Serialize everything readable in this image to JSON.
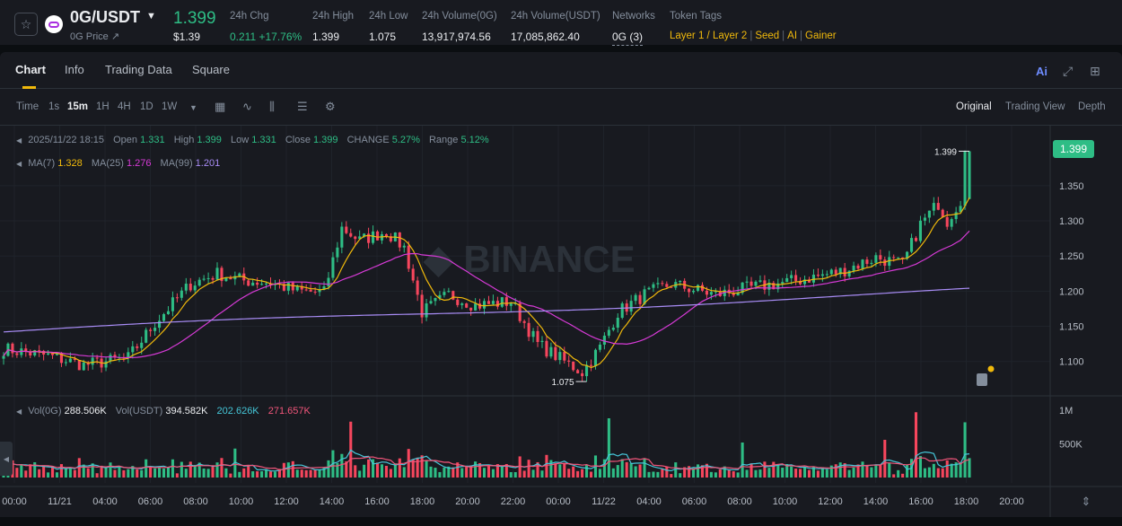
{
  "header": {
    "pair": "0G/USDT",
    "subname": "0G Price ↗",
    "last_price": "1.399",
    "last_price_usd": "$1.39",
    "stats": [
      {
        "label": "24h Chg",
        "value": "0.211 +17.76%"
      },
      {
        "label": "24h High",
        "value": "1.399"
      },
      {
        "label": "24h Low",
        "value": "1.075"
      },
      {
        "label": "24h Volume(0G)",
        "value": "13,917,974.56"
      },
      {
        "label": "24h Volume(USDT)",
        "value": "17,085,862.40"
      },
      {
        "label": "Networks",
        "value": "0G (3)"
      }
    ],
    "token_tags_label": "Token Tags",
    "token_tags": [
      "Layer 1 / Layer 2",
      "Seed",
      "AI",
      "Gainer"
    ]
  },
  "tabs": [
    "Chart",
    "Info",
    "Trading Data",
    "Square"
  ],
  "toolbar": {
    "timeframes": [
      "Time",
      "1s",
      "15m",
      "1H",
      "4H",
      "1D",
      "1W"
    ],
    "active_timeframe": "15m",
    "views": [
      "Original",
      "Trading View",
      "Depth"
    ],
    "ai_label": "Ai"
  },
  "legend": {
    "ohlc": {
      "date": "2025/11/22 18:15",
      "open_label": "Open",
      "open": "1.331",
      "high_label": "High",
      "high": "1.399",
      "low_label": "Low",
      "low": "1.331",
      "close_label": "Close",
      "close": "1.399",
      "change_label": "CHANGE",
      "change": "5.27%",
      "range_label": "Range",
      "range": "5.12%"
    },
    "ma": {
      "ma7_label": "MA(7)",
      "ma7": "1.328",
      "ma25_label": "MA(25)",
      "ma25": "1.276",
      "ma99_label": "MA(99)",
      "ma99": "1.201"
    },
    "volume": {
      "vol_base_label": "Vol(0G)",
      "vol_base": "288.506K",
      "vol_quote_label": "Vol(USDT)",
      "vol_quote": "394.582K",
      "vol_ma1": "202.626K",
      "vol_ma2": "271.657K"
    }
  },
  "colors": {
    "up": "#2ebd85",
    "down": "#f6465d",
    "ma7": "#f0b90b",
    "ma25": "#d63ad6",
    "ma99": "#a88cf5",
    "vol_ma1": "#45c6d8",
    "vol_ma2": "#f0557a",
    "accent": "#f0b90b"
  },
  "chart_data": {
    "type": "candlestick",
    "interval": "15m",
    "price_axis_ticks": [
      "1.350",
      "1.300",
      "1.250",
      "1.200",
      "1.150",
      "1.100"
    ],
    "price_ylim": [
      1.055,
      1.42
    ],
    "volume_axis_ticks": [
      "1M",
      "500K"
    ],
    "volume_ylim": [
      0,
      1200000
    ],
    "time_ticks": [
      "00:00",
      "11/21",
      "04:00",
      "06:00",
      "08:00",
      "10:00",
      "12:00",
      "14:00",
      "16:00",
      "18:00",
      "20:00",
      "22:00",
      "00:00",
      "11/22",
      "04:00",
      "06:00",
      "08:00",
      "10:00",
      "12:00",
      "14:00",
      "16:00",
      "18:00",
      "20:00"
    ],
    "current_price": "1.399",
    "high_annotation": "1.399",
    "low_annotation": "1.075",
    "series_anchors": [
      {
        "t": 0,
        "p": 1.118
      },
      {
        "t": 10,
        "p": 1.108
      },
      {
        "t": 18,
        "p": 1.095
      },
      {
        "t": 28,
        "p": 1.105
      },
      {
        "t": 34,
        "p": 1.155
      },
      {
        "t": 42,
        "p": 1.21
      },
      {
        "t": 48,
        "p": 1.225
      },
      {
        "t": 54,
        "p": 1.215
      },
      {
        "t": 60,
        "p": 1.212
      },
      {
        "t": 66,
        "p": 1.2
      },
      {
        "t": 72,
        "p": 1.198
      },
      {
        "t": 76,
        "p": 1.29
      },
      {
        "t": 80,
        "p": 1.272
      },
      {
        "t": 86,
        "p": 1.285
      },
      {
        "t": 90,
        "p": 1.262
      },
      {
        "t": 94,
        "p": 1.17
      },
      {
        "t": 100,
        "p": 1.195
      },
      {
        "t": 106,
        "p": 1.18
      },
      {
        "t": 114,
        "p": 1.185
      },
      {
        "t": 120,
        "p": 1.125
      },
      {
        "t": 126,
        "p": 1.1
      },
      {
        "t": 130,
        "p": 1.085
      },
      {
        "t": 134,
        "p": 1.12
      },
      {
        "t": 138,
        "p": 1.17
      },
      {
        "t": 144,
        "p": 1.195
      },
      {
        "t": 150,
        "p": 1.21
      },
      {
        "t": 160,
        "p": 1.195
      },
      {
        "t": 168,
        "p": 1.205
      },
      {
        "t": 178,
        "p": 1.215
      },
      {
        "t": 188,
        "p": 1.228
      },
      {
        "t": 196,
        "p": 1.248
      },
      {
        "t": 202,
        "p": 1.238
      },
      {
        "t": 206,
        "p": 1.295
      },
      {
        "t": 210,
        "p": 1.325
      },
      {
        "t": 212,
        "p": 1.3
      },
      {
        "t": 215,
        "p": 1.331
      },
      {
        "t": 216,
        "p": 1.399
      }
    ],
    "volume_spikes": [
      {
        "t": 52,
        "v": 430000
      },
      {
        "t": 78,
        "v": 830000
      },
      {
        "t": 136,
        "v": 880000
      },
      {
        "t": 166,
        "v": 520000
      },
      {
        "t": 198,
        "v": 560000
      },
      {
        "t": 205,
        "v": 970000
      }
    ]
  }
}
